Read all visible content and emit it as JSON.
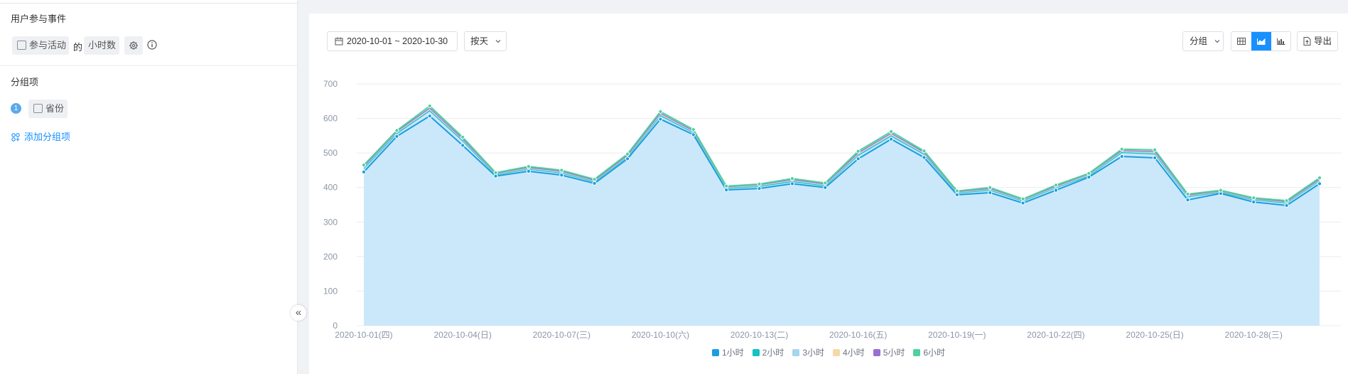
{
  "left_panel": {
    "event_title": "用户参与事件",
    "event_name": "参与活动",
    "connector": "的",
    "metric": "小时数",
    "group_title": "分组项",
    "group_index": "1",
    "group_item": "省份",
    "add_group": "添加分组项",
    "collapse_icon": "«"
  },
  "toolbar": {
    "date_range": "2020-10-01 ~ 2020-10-30",
    "granularity": "按天",
    "group_btn": "分组",
    "export": "导出"
  },
  "colors": {
    "accent": "#1890ff",
    "area_fill": "#cbe8fb",
    "series_main": "#1a9ee0",
    "series_top": "#4fd1a0"
  },
  "chart_data": {
    "type": "area",
    "x": [
      "2020-10-01(四)",
      "2020-10-02(五)",
      "2020-10-03(六)",
      "2020-10-04(日)",
      "2020-10-05(一)",
      "2020-10-06(二)",
      "2020-10-07(三)",
      "2020-10-08(四)",
      "2020-10-09(五)",
      "2020-10-10(六)",
      "2020-10-11(日)",
      "2020-10-12(一)",
      "2020-10-13(二)",
      "2020-10-14(三)",
      "2020-10-15(四)",
      "2020-10-16(五)",
      "2020-10-17(六)",
      "2020-10-18(日)",
      "2020-10-19(一)",
      "2020-10-20(二)",
      "2020-10-21(三)",
      "2020-10-22(四)",
      "2020-10-23(五)",
      "2020-10-24(六)",
      "2020-10-25(日)",
      "2020-10-26(一)",
      "2020-10-27(二)",
      "2020-10-28(三)",
      "2020-10-29(四)",
      "2020-10-30(五)"
    ],
    "x_tick_labels": [
      "2020-10-01(四)",
      "2020-10-04(日)",
      "2020-10-07(三)",
      "2020-10-10(六)",
      "2020-10-13(二)",
      "2020-10-16(五)",
      "2020-10-19(一)",
      "2020-10-22(四)",
      "2020-10-25(日)",
      "2020-10-28(三)"
    ],
    "y_ticks": [
      0,
      100,
      200,
      300,
      400,
      500,
      600,
      700
    ],
    "ylim": [
      0,
      700
    ],
    "stacked": true,
    "series": [
      {
        "name": "1小时",
        "color": "#1a9ee0",
        "values": [
          445,
          548,
          607,
          522,
          433,
          447,
          436,
          412,
          483,
          598,
          553,
          393,
          397,
          411,
          400,
          483,
          540,
          487,
          379,
          385,
          355,
          392,
          430,
          490,
          486,
          364,
          383,
          358,
          348,
          411
        ]
      },
      {
        "name": "2小时",
        "color": "#13c2c2",
        "values": [
          10,
          8,
          15,
          13,
          4,
          6,
          6,
          5,
          5,
          10,
          6,
          5,
          6,
          6,
          5,
          10,
          9,
          9,
          5,
          7,
          6,
          7,
          4,
          11,
          11,
          9,
          3,
          6,
          7,
          8
        ]
      },
      {
        "name": "3小时",
        "color": "#a6d5f0",
        "values": [
          3,
          3,
          3,
          3,
          2,
          2,
          2,
          2,
          2,
          3,
          2,
          2,
          2,
          3,
          2,
          3,
          3,
          3,
          2,
          2,
          2,
          2,
          2,
          3,
          3,
          2,
          2,
          2,
          2,
          2
        ]
      },
      {
        "name": "4小时",
        "color": "#f6d9a8",
        "values": [
          2,
          2,
          3,
          2,
          1,
          2,
          2,
          1,
          2,
          2,
          2,
          1,
          2,
          2,
          2,
          2,
          3,
          2,
          1,
          2,
          1,
          2,
          2,
          2,
          2,
          2,
          1,
          1,
          1,
          2
        ]
      },
      {
        "name": "5小时",
        "color": "#9a6fd1",
        "values": [
          1,
          1,
          2,
          1,
          1,
          1,
          1,
          1,
          1,
          2,
          1,
          1,
          1,
          1,
          1,
          2,
          2,
          1,
          1,
          1,
          1,
          1,
          1,
          1,
          2,
          1,
          1,
          1,
          1,
          1
        ]
      },
      {
        "name": "6小时",
        "color": "#4fd1a0",
        "values": [
          4,
          3,
          6,
          5,
          2,
          3,
          3,
          3,
          4,
          5,
          4,
          2,
          2,
          3,
          3,
          5,
          5,
          4,
          2,
          3,
          2,
          3,
          2,
          4,
          5,
          3,
          2,
          2,
          3,
          4
        ]
      }
    ]
  }
}
